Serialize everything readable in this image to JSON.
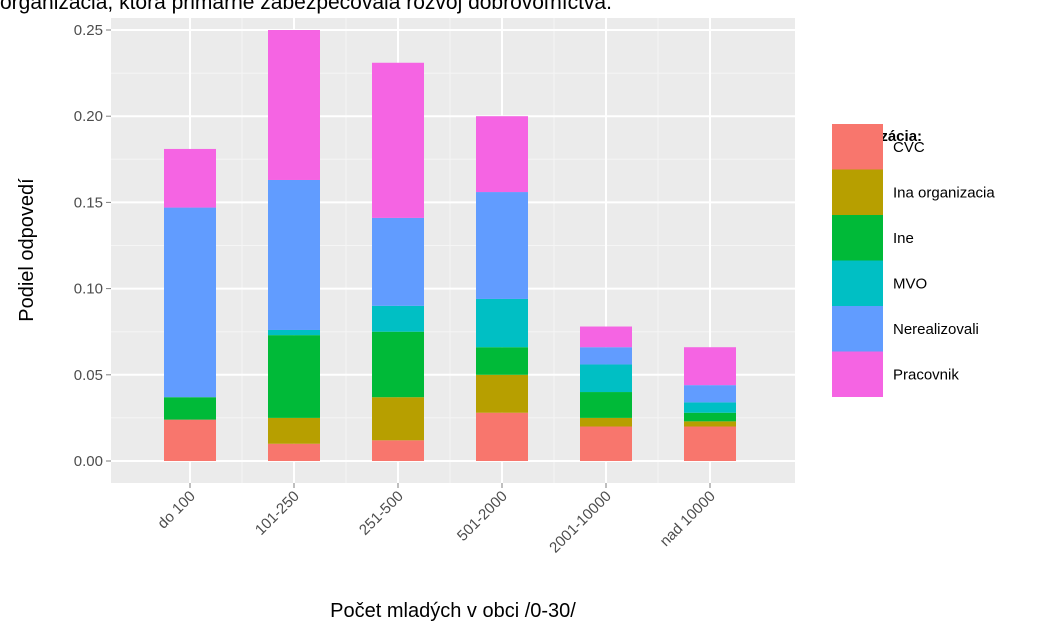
{
  "page": {
    "title_fragment": "organizácia, ktorá primárne zabezpečovala rozvoj dobrovoľníctva."
  },
  "chart_data": {
    "type": "bar",
    "stacked": true,
    "title": "",
    "xlabel": "Počet mladých v obci /0-30/",
    "ylabel": "Podiel odpovedí",
    "ylim": [
      0,
      0.26
    ],
    "yticks": [
      0.0,
      0.05,
      0.1,
      0.15,
      0.2,
      0.25
    ],
    "ytick_labels": [
      "0.00",
      "0.05",
      "0.10",
      "0.15",
      "0.20",
      "0.25"
    ],
    "grid": true,
    "legend_title": "Organizácia:",
    "legend_position": "right",
    "categories": [
      "do 100",
      "101-250",
      "251-500",
      "501-2000",
      "2001-10000",
      "nad 10000"
    ],
    "series": [
      {
        "name": "CVC",
        "color": "#F8766D",
        "values": [
          0.024,
          0.01,
          0.012,
          0.028,
          0.02,
          0.02
        ]
      },
      {
        "name": "Ina organizacia",
        "color": "#B79F00",
        "values": [
          0.0,
          0.015,
          0.025,
          0.022,
          0.005,
          0.003
        ]
      },
      {
        "name": "Ine",
        "color": "#00BA38",
        "values": [
          0.013,
          0.048,
          0.038,
          0.016,
          0.015,
          0.005
        ]
      },
      {
        "name": "MVO",
        "color": "#00BFC4",
        "values": [
          0.0,
          0.003,
          0.015,
          0.028,
          0.016,
          0.006
        ]
      },
      {
        "name": "Nerealizovali",
        "color": "#619CFF",
        "values": [
          0.11,
          0.087,
          0.051,
          0.062,
          0.01,
          0.01
        ]
      },
      {
        "name": "Pracovnik",
        "color": "#F564E3",
        "values": [
          0.034,
          0.087,
          0.09,
          0.044,
          0.012,
          0.022
        ]
      }
    ]
  }
}
